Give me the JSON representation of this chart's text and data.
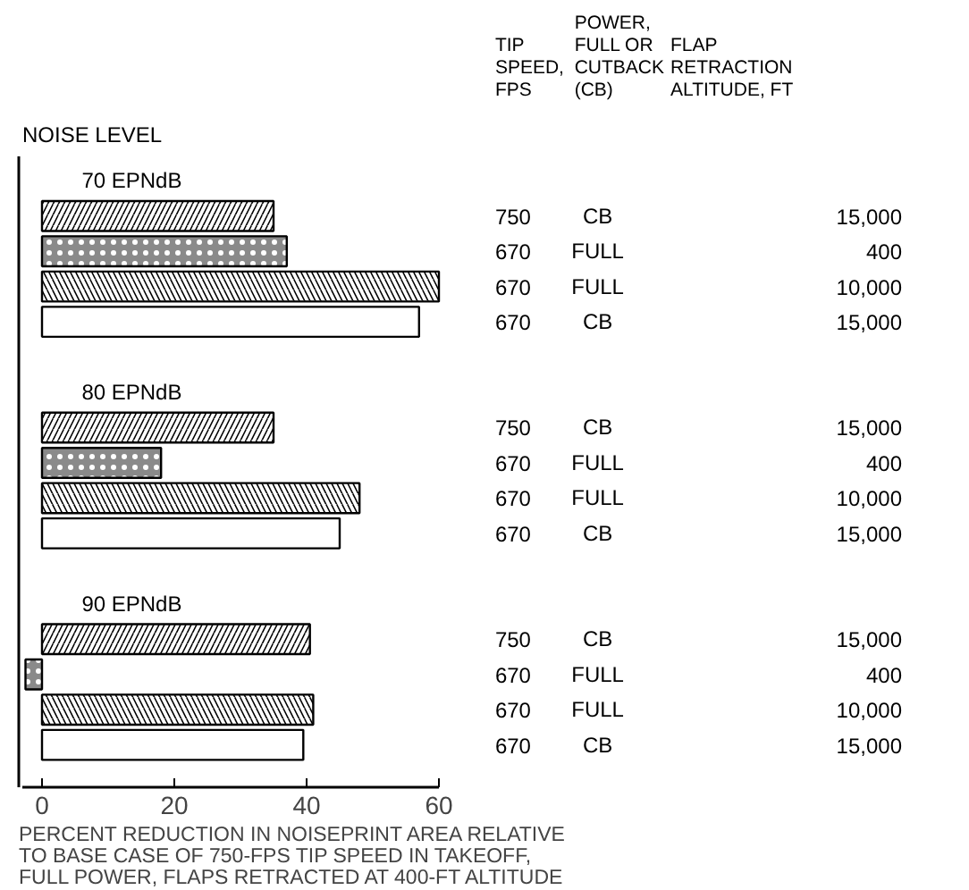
{
  "chart_data": {
    "type": "bar",
    "orientation": "horizontal",
    "ylabel": "NOISE LEVEL",
    "xlabel": "PERCENT REDUCTION IN NOISEPRINT AREA RELATIVE\nTO BASE CASE OF 750-FPS TIP SPEED IN TAKEOFF,\nFULL POWER, FLAPS RETRACTED AT 400-FT ALTITUDE",
    "categories": [
      "70 EPNdB",
      "80 EPNdB",
      "90 EPNdB"
    ],
    "series": [
      {
        "color": "#ffffff",
        "values": [
          35,
          35,
          40.5
        ]
      },
      {
        "color": "#8a8a8a",
        "values": [
          37,
          18,
          -2.5
        ]
      },
      {
        "color": "#ffffff",
        "values": [
          60,
          48,
          41
        ]
      },
      {
        "color": "#ffffff",
        "values": [
          57,
          45,
          39.5
        ]
      }
    ],
    "xlim": [
      -3,
      60
    ],
    "xticks": [
      0,
      20,
      40,
      60
    ],
    "grid": false,
    "annotations": [
      "TIP\nSPEED,\nFPS",
      "POWER,\nFULL OR\nCUTBACK\n(CB)",
      "FLAP\nRETRACTION\nALTITUDE, FT",
      "750",
      "CB",
      "15,000",
      "670",
      "FULL",
      "400",
      "670",
      "FULL",
      "10,000",
      "670",
      "CB",
      "15,000",
      "750",
      "CB",
      "15,000",
      "670",
      "FULL",
      "400",
      "670",
      "FULL",
      "10,000",
      "670",
      "CB",
      "15,000",
      "750",
      "CB",
      "15,000",
      "670",
      "FULL",
      "400",
      "670",
      "FULL",
      "10,000",
      "670",
      "CB",
      "15,000"
    ]
  }
}
